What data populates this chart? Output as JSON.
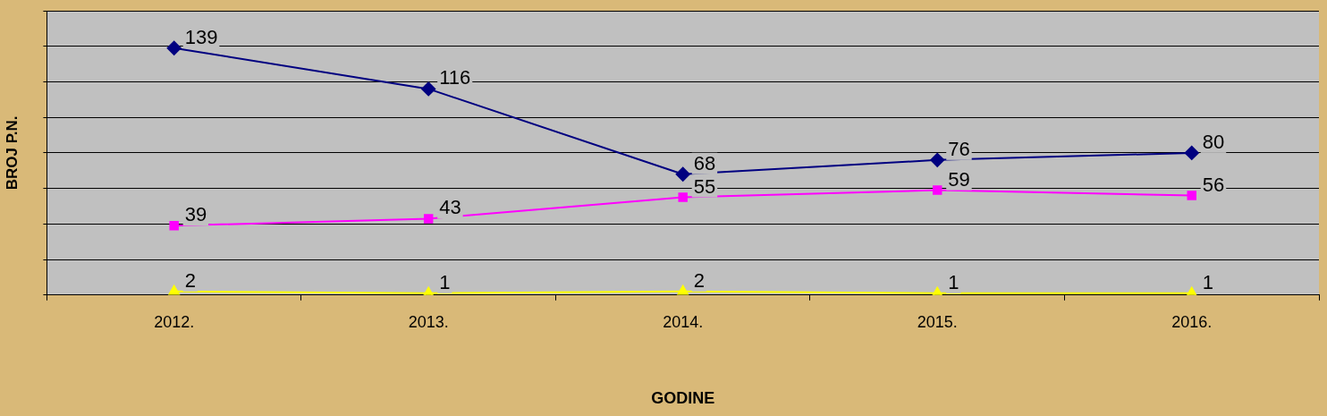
{
  "chart_data": {
    "type": "line",
    "xlabel": "GODINE",
    "ylabel": "BROJ P.N.",
    "categories": [
      "2012.",
      "2013.",
      "2014.",
      "2015.",
      "2016."
    ],
    "series": [
      {
        "color": "#000080",
        "marker": "diamond",
        "values": [
          139,
          116,
          68,
          76,
          80
        ]
      },
      {
        "color": "#ff00ff",
        "marker": "square",
        "values": [
          39,
          43,
          55,
          59,
          56
        ]
      },
      {
        "color": "#ffff00",
        "marker": "triangle",
        "values": [
          2,
          1,
          2,
          1,
          1
        ]
      }
    ],
    "ylim": [
      0,
      160
    ],
    "yticks": [
      {
        "value": 0,
        "label": null
      },
      {
        "value": 20,
        "label": null
      },
      {
        "value": 40,
        "label": null
      },
      {
        "value": 60,
        "label": null
      },
      {
        "value": 80,
        "label": null
      },
      {
        "value": 100,
        "label": null
      },
      {
        "value": 120,
        "label": null
      },
      {
        "value": 140,
        "label": null
      },
      {
        "value": 160,
        "label": null
      }
    ],
    "grid": "y",
    "tick_labels": "x",
    "data_labels": true,
    "legend": false
  }
}
